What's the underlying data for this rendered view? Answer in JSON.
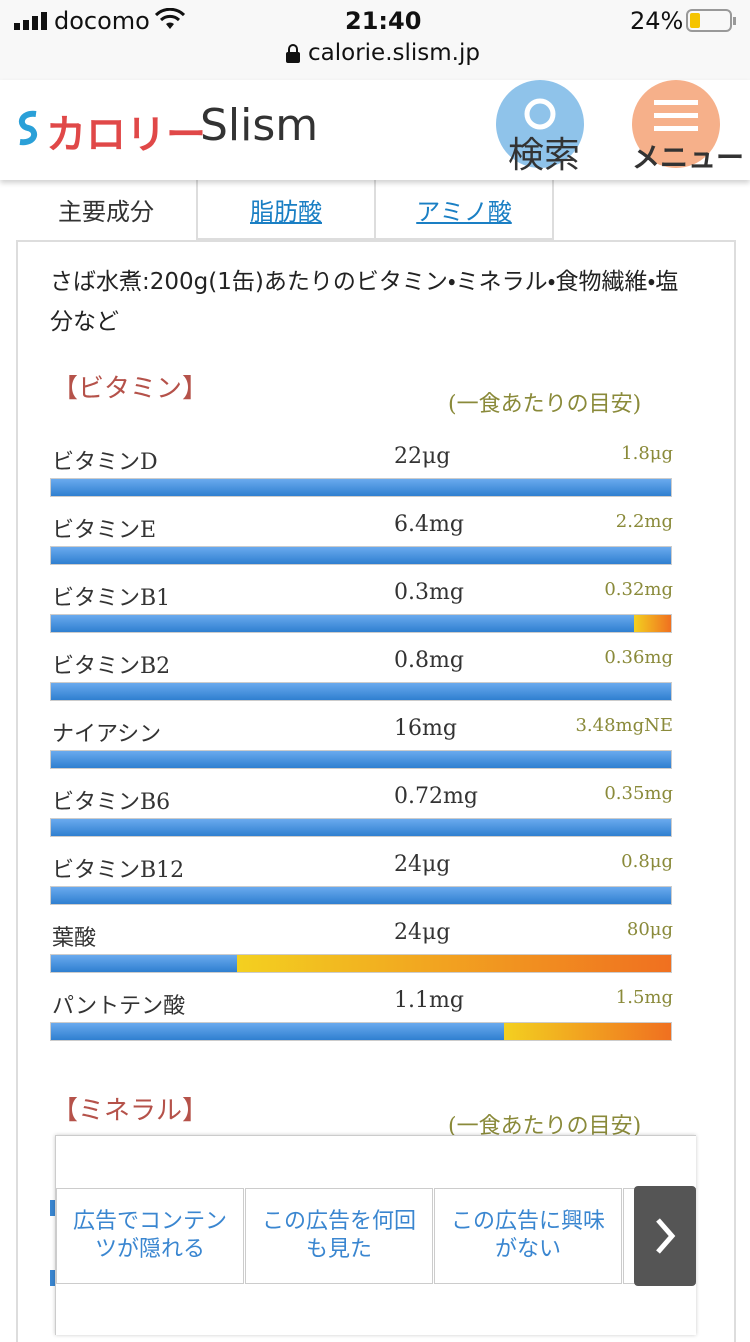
{
  "status_bar": {
    "carrier": "docomo",
    "time": "21:40",
    "battery": "24%",
    "url": "calorie.slism.jp"
  },
  "header": {
    "logo_kana": "カロリー",
    "logo_latin": "Slism",
    "search": "検索",
    "menu": "メニュー"
  },
  "tabs": [
    "主要成分",
    "脂肪酸",
    "アミノ酸"
  ],
  "description": "さば水煮:200g(1缶)あたりのビタミン・ミネラル・食物繊維・塩分など",
  "sections": [
    {
      "title": "【ビタミン】",
      "note": "(一食あたりの目安)",
      "rows": [
        {
          "name": "ビタミンD",
          "amount": "22μg",
          "target": "1.8μg",
          "fill": 100
        },
        {
          "name": "ビタミンE",
          "amount": "6.4mg",
          "target": "2.2mg",
          "fill": 100
        },
        {
          "name": "ビタミンB1",
          "amount": "0.3mg",
          "target": "0.32mg",
          "fill": 94
        },
        {
          "name": "ビタミンB2",
          "amount": "0.8mg",
          "target": "0.36mg",
          "fill": 100
        },
        {
          "name": "ナイアシン",
          "amount": "16mg",
          "target": "3.48mgNE",
          "fill": 100
        },
        {
          "name": "ビタミンB6",
          "amount": "0.72mg",
          "target": "0.35mg",
          "fill": 100
        },
        {
          "name": "ビタミンB12",
          "amount": "24μg",
          "target": "0.8μg",
          "fill": 100
        },
        {
          "name": "葉酸",
          "amount": "24μg",
          "target": "80μg",
          "fill": 30
        },
        {
          "name": "パントテン酸",
          "amount": "1.1mg",
          "target": "1.5mg",
          "fill": 73
        }
      ]
    },
    {
      "title": "【ミネラル】",
      "note": "(一食あたりの目安)"
    }
  ],
  "ad": {
    "buttons": [
      "広告でコンテンツが隠れる",
      "この広告を何回も見た",
      "この広告に興味がない"
    ]
  }
}
